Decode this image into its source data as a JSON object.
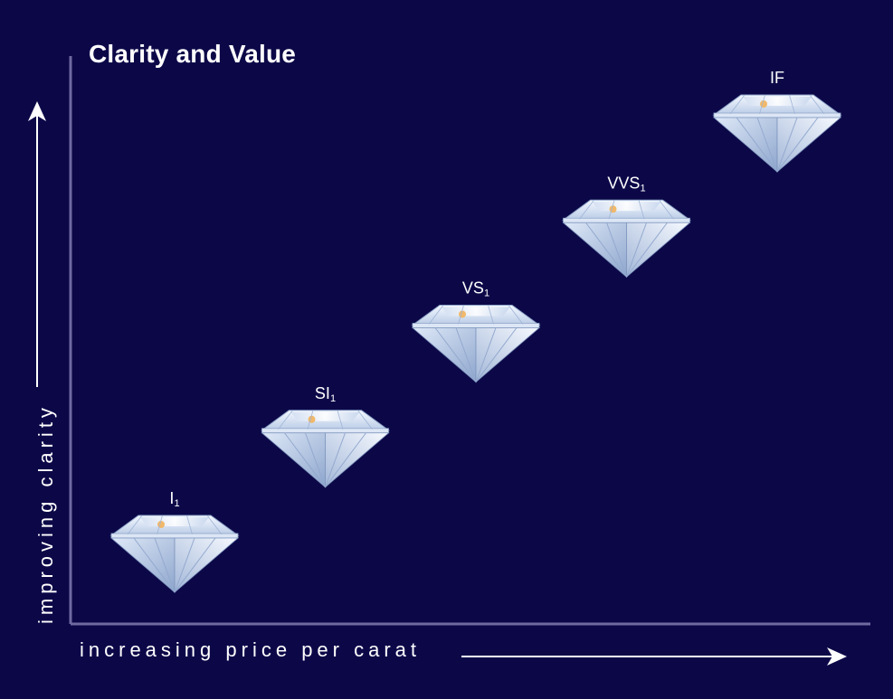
{
  "chart_data": {
    "type": "scatter",
    "title": "Clarity and Value",
    "xlabel": "increasing price per carat",
    "ylabel": "improving clarity",
    "categories": [
      "I1",
      "SI1",
      "VS1",
      "VVS1",
      "IF"
    ],
    "labels": [
      {
        "main": "I",
        "sub": "1"
      },
      {
        "main": "SI",
        "sub": "1"
      },
      {
        "main": "VS",
        "sub": "1"
      },
      {
        "main": "VVS",
        "sub": "1"
      },
      {
        "main": "IF",
        "sub": ""
      }
    ],
    "x": [
      1,
      2,
      3,
      4,
      5
    ],
    "y": [
      1,
      2,
      3,
      4,
      5
    ],
    "xlim": [
      0.5,
      5.5
    ],
    "ylim": [
      0.5,
      5.5
    ],
    "marker": "diamond-icon",
    "grid": false,
    "legend": "none"
  },
  "colors": {
    "background": "#0c0848",
    "axis": "#6f6aa0",
    "text": "#ffffff",
    "diamond_light": "#eef3fb",
    "diamond_mid": "#a9bddc",
    "diamond_dark": "#6f89b6"
  }
}
